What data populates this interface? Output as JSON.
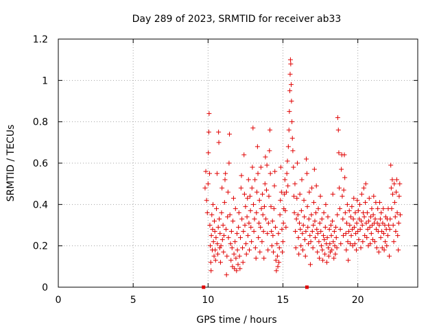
{
  "chart_data": {
    "type": "scatter",
    "title": "Day 289 of 2023, SRMTID for receiver ab33",
    "xlabel": "GPS time / hours",
    "ylabel": "SRMTID / TECUs",
    "xlim": [
      0,
      24
    ],
    "ylim": [
      0,
      1.2
    ],
    "x_ticks": [
      0,
      5,
      10,
      15,
      20
    ],
    "x_tick_labels": [
      "0",
      "5",
      "10",
      "15",
      "20"
    ],
    "y_ticks": [
      0,
      0.2,
      0.4,
      0.6,
      0.8,
      1,
      1.2
    ],
    "y_tick_labels": [
      "0",
      "0.2",
      "0.4",
      "0.6",
      "0.8",
      "1",
      "1.2"
    ],
    "grid": true,
    "marker": "+",
    "series_color": "#e00000",
    "axis_markers": [
      {
        "x": 9.7,
        "y": 0
      },
      {
        "x": 16.6,
        "y": 0
      }
    ],
    "points": [
      [
        9.8,
        0.48
      ],
      [
        9.85,
        0.56
      ],
      [
        9.9,
        0.42
      ],
      [
        9.95,
        0.36
      ],
      [
        10.0,
        0.5
      ],
      [
        10.02,
        0.65
      ],
      [
        10.05,
        0.75
      ],
      [
        10.07,
        0.84
      ],
      [
        10.1,
        0.55
      ],
      [
        10.12,
        0.3
      ],
      [
        10.15,
        0.2
      ],
      [
        10.18,
        0.12
      ],
      [
        10.2,
        0.08
      ],
      [
        10.22,
        0.25
      ],
      [
        10.25,
        0.35
      ],
      [
        10.28,
        0.18
      ],
      [
        10.3,
        0.28
      ],
      [
        10.33,
        0.4
      ],
      [
        10.36,
        0.22
      ],
      [
        10.4,
        0.15
      ],
      [
        10.42,
        0.32
      ],
      [
        10.45,
        0.27
      ],
      [
        10.48,
        0.18
      ],
      [
        10.5,
        0.13
      ],
      [
        10.53,
        0.24
      ],
      [
        10.56,
        0.38
      ],
      [
        10.6,
        0.55
      ],
      [
        10.62,
        0.21
      ],
      [
        10.65,
        0.16
      ],
      [
        10.68,
        0.29
      ],
      [
        10.7,
        0.75
      ],
      [
        10.72,
        0.7
      ],
      [
        10.75,
        0.33
      ],
      [
        10.78,
        0.19
      ],
      [
        10.8,
        0.26
      ],
      [
        10.83,
        0.12
      ],
      [
        10.86,
        0.2
      ],
      [
        10.9,
        0.36
      ],
      [
        10.93,
        0.48
      ],
      [
        10.96,
        0.23
      ],
      [
        11.0,
        0.3
      ],
      [
        11.03,
        0.17
      ],
      [
        11.06,
        0.25
      ],
      [
        11.1,
        0.41
      ],
      [
        11.13,
        0.52
      ],
      [
        11.16,
        0.55
      ],
      [
        11.2,
        0.28
      ],
      [
        11.23,
        0.06
      ],
      [
        11.26,
        0.15
      ],
      [
        11.3,
        0.34
      ],
      [
        11.33,
        0.46
      ],
      [
        11.36,
        0.24
      ],
      [
        11.4,
        0.6
      ],
      [
        11.43,
        0.74
      ],
      [
        11.46,
        0.35
      ],
      [
        11.5,
        0.21
      ],
      [
        11.53,
        0.13
      ],
      [
        11.56,
        0.27
      ],
      [
        11.6,
        0.19
      ],
      [
        11.63,
        0.1
      ],
      [
        11.66,
        0.32
      ],
      [
        11.7,
        0.43
      ],
      [
        11.73,
        0.16
      ],
      [
        11.76,
        0.09
      ],
      [
        11.8,
        0.22
      ],
      [
        11.83,
        0.38
      ],
      [
        11.86,
        0.14
      ],
      [
        11.9,
        0.08
      ],
      [
        11.93,
        0.26
      ],
      [
        11.96,
        0.18
      ],
      [
        12.0,
        0.11
      ],
      [
        12.03,
        0.29
      ],
      [
        12.06,
        0.36
      ],
      [
        12.1,
        0.15
      ],
      [
        12.13,
        0.09
      ],
      [
        12.16,
        0.24
      ],
      [
        12.2,
        0.48
      ],
      [
        12.23,
        0.54
      ],
      [
        12.26,
        0.33
      ],
      [
        12.3,
        0.19
      ],
      [
        12.33,
        0.12
      ],
      [
        12.36,
        0.27
      ],
      [
        12.4,
        0.64
      ],
      [
        12.43,
        0.45
      ],
      [
        12.46,
        0.3
      ],
      [
        12.5,
        0.39
      ],
      [
        12.53,
        0.21
      ],
      [
        12.56,
        0.16
      ],
      [
        12.6,
        0.34
      ],
      [
        12.63,
        0.43
      ],
      [
        12.66,
        0.25
      ],
      [
        12.7,
        0.52
      ],
      [
        12.73,
        0.31
      ],
      [
        12.76,
        0.18
      ],
      [
        12.8,
        0.44
      ],
      [
        12.83,
        0.37
      ],
      [
        12.86,
        0.29
      ],
      [
        12.9,
        0.22
      ],
      [
        12.93,
        0.48
      ],
      [
        12.96,
        0.58
      ],
      [
        13.0,
        0.77
      ],
      [
        13.03,
        0.4
      ],
      [
        13.06,
        0.27
      ],
      [
        13.1,
        0.33
      ],
      [
        13.13,
        0.52
      ],
      [
        13.16,
        0.19
      ],
      [
        13.2,
        0.14
      ],
      [
        13.23,
        0.36
      ],
      [
        13.26,
        0.46
      ],
      [
        13.3,
        0.68
      ],
      [
        13.33,
        0.55
      ],
      [
        13.36,
        0.24
      ],
      [
        13.4,
        0.31
      ],
      [
        13.43,
        0.42
      ],
      [
        13.46,
        0.17
      ],
      [
        13.5,
        0.29
      ],
      [
        13.53,
        0.58
      ],
      [
        13.56,
        0.38
      ],
      [
        13.6,
        0.22
      ],
      [
        13.63,
        0.45
      ],
      [
        13.66,
        0.35
      ],
      [
        13.7,
        0.27
      ],
      [
        13.73,
        0.14
      ],
      [
        13.76,
        0.39
      ],
      [
        13.8,
        0.5
      ],
      [
        13.83,
        0.63
      ],
      [
        13.86,
        0.33
      ],
      [
        13.9,
        0.47
      ],
      [
        13.93,
        0.59
      ],
      [
        13.96,
        0.26
      ],
      [
        14.0,
        0.18
      ],
      [
        14.03,
        0.31
      ],
      [
        14.06,
        0.44
      ],
      [
        14.1,
        0.66
      ],
      [
        14.13,
        0.76
      ],
      [
        14.16,
        0.55
      ],
      [
        14.2,
        0.39
      ],
      [
        14.23,
        0.27
      ],
      [
        14.26,
        0.2
      ],
      [
        14.3,
        0.32
      ],
      [
        14.33,
        0.25
      ],
      [
        14.36,
        0.17
      ],
      [
        14.4,
        0.38
      ],
      [
        14.43,
        0.49
      ],
      [
        14.46,
        0.56
      ],
      [
        14.5,
        0.29
      ],
      [
        14.53,
        0.13
      ],
      [
        14.56,
        0.08
      ],
      [
        14.6,
        0.21
      ],
      [
        14.63,
        0.15
      ],
      [
        14.66,
        0.1
      ],
      [
        14.7,
        0.26
      ],
      [
        14.73,
        0.12
      ],
      [
        14.76,
        0.19
      ],
      [
        14.8,
        0.35
      ],
      [
        14.83,
        0.42
      ],
      [
        14.86,
        0.58
      ],
      [
        14.9,
        0.46
      ],
      [
        14.93,
        0.28
      ],
      [
        14.96,
        0.17
      ],
      [
        15.0,
        0.22
      ],
      [
        15.03,
        0.31
      ],
      [
        15.06,
        0.38
      ],
      [
        15.1,
        0.45
      ],
      [
        15.13,
        0.52
      ],
      [
        15.16,
        0.37
      ],
      [
        15.2,
        0.29
      ],
      [
        15.23,
        0.46
      ],
      [
        15.26,
        0.55
      ],
      [
        15.3,
        0.61
      ],
      [
        15.33,
        0.49
      ],
      [
        15.36,
        0.68
      ],
      [
        15.4,
        0.76
      ],
      [
        15.43,
        0.85
      ],
      [
        15.46,
        0.95
      ],
      [
        15.48,
        1.03
      ],
      [
        15.5,
        1.1
      ],
      [
        15.52,
        1.08
      ],
      [
        15.55,
        0.98
      ],
      [
        15.57,
        0.9
      ],
      [
        15.6,
        0.8
      ],
      [
        15.63,
        0.72
      ],
      [
        15.66,
        0.66
      ],
      [
        15.7,
        0.58
      ],
      [
        15.73,
        0.44
      ],
      [
        15.76,
        0.36
      ],
      [
        15.8,
        0.5
      ],
      [
        15.83,
        0.27
      ],
      [
        15.86,
        0.19
      ],
      [
        15.9,
        0.33
      ],
      [
        15.93,
        0.43
      ],
      [
        15.96,
        0.6
      ],
      [
        16.0,
        0.35
      ],
      [
        16.03,
        0.24
      ],
      [
        16.06,
        0.16
      ],
      [
        16.1,
        0.31
      ],
      [
        16.13,
        0.45
      ],
      [
        16.16,
        0.28
      ],
      [
        16.2,
        0.2
      ],
      [
        16.23,
        0.37
      ],
      [
        16.26,
        0.52
      ],
      [
        16.3,
        0.26
      ],
      [
        16.33,
        0.18
      ],
      [
        16.36,
        0.3
      ],
      [
        16.4,
        0.42
      ],
      [
        16.43,
        0.34
      ],
      [
        16.46,
        0.23
      ],
      [
        16.5,
        0.15
      ],
      [
        16.53,
        0.27
      ],
      [
        16.56,
        0.62
      ],
      [
        16.6,
        0.55
      ],
      [
        16.63,
        0.39
      ],
      [
        16.66,
        0.29
      ],
      [
        16.7,
        0.21
      ],
      [
        16.73,
        0.33
      ],
      [
        16.76,
        0.46
      ],
      [
        16.8,
        0.25
      ],
      [
        16.83,
        0.11
      ],
      [
        16.86,
        0.22
      ],
      [
        16.9,
        0.35
      ],
      [
        16.93,
        0.48
      ],
      [
        16.96,
        0.27
      ],
      [
        17.0,
        0.19
      ],
      [
        17.03,
        0.3
      ],
      [
        17.06,
        0.41
      ],
      [
        17.1,
        0.57
      ],
      [
        17.13,
        0.32
      ],
      [
        17.16,
        0.24
      ],
      [
        17.2,
        0.36
      ],
      [
        17.23,
        0.49
      ],
      [
        17.26,
        0.28
      ],
      [
        17.3,
        0.17
      ],
      [
        17.33,
        0.26
      ],
      [
        17.36,
        0.38
      ],
      [
        17.4,
        0.22
      ],
      [
        17.43,
        0.14
      ],
      [
        17.46,
        0.31
      ],
      [
        17.5,
        0.44
      ],
      [
        17.53,
        0.27
      ],
      [
        17.56,
        0.2
      ],
      [
        17.6,
        0.33
      ],
      [
        17.63,
        0.18
      ],
      [
        17.66,
        0.13
      ],
      [
        17.7,
        0.25
      ],
      [
        17.73,
        0.36
      ],
      [
        17.76,
        0.23
      ],
      [
        17.8,
        0.16
      ],
      [
        17.83,
        0.29
      ],
      [
        17.86,
        0.4
      ],
      [
        17.9,
        0.21
      ],
      [
        17.93,
        0.12
      ],
      [
        17.96,
        0.24
      ],
      [
        18.0,
        0.34
      ],
      [
        18.03,
        0.19
      ],
      [
        18.06,
        0.15
      ],
      [
        18.1,
        0.28
      ],
      [
        18.13,
        0.21
      ],
      [
        18.16,
        0.17
      ],
      [
        18.2,
        0.3
      ],
      [
        18.23,
        0.25
      ],
      [
        18.26,
        0.18
      ],
      [
        18.3,
        0.32
      ],
      [
        18.33,
        0.45
      ],
      [
        18.36,
        0.22
      ],
      [
        18.4,
        0.14
      ],
      [
        18.43,
        0.27
      ],
      [
        18.46,
        0.2
      ],
      [
        18.5,
        0.16
      ],
      [
        18.53,
        0.29
      ],
      [
        18.56,
        0.24
      ],
      [
        18.6,
        0.19
      ],
      [
        18.63,
        0.35
      ],
      [
        18.66,
        0.82
      ],
      [
        18.7,
        0.76
      ],
      [
        18.73,
        0.65
      ],
      [
        18.76,
        0.48
      ],
      [
        18.8,
        0.38
      ],
      [
        18.83,
        0.28
      ],
      [
        18.86,
        0.21
      ],
      [
        18.9,
        0.57
      ],
      [
        18.93,
        0.64
      ],
      [
        18.96,
        0.44
      ],
      [
        19.0,
        0.33
      ],
      [
        19.03,
        0.25
      ],
      [
        19.06,
        0.47
      ],
      [
        19.1,
        0.64
      ],
      [
        19.13,
        0.53
      ],
      [
        19.16,
        0.36
      ],
      [
        19.2,
        0.26
      ],
      [
        19.23,
        0.18
      ],
      [
        19.26,
        0.31
      ],
      [
        19.3,
        0.4
      ],
      [
        19.33,
        0.22
      ],
      [
        19.36,
        0.13
      ],
      [
        19.4,
        0.27
      ],
      [
        19.43,
        0.37
      ],
      [
        19.46,
        0.3
      ],
      [
        19.5,
        0.21
      ],
      [
        19.53,
        0.34
      ],
      [
        19.56,
        0.25
      ],
      [
        19.6,
        0.39
      ],
      [
        19.63,
        0.28
      ],
      [
        19.66,
        0.2
      ],
      [
        19.7,
        0.33
      ],
      [
        19.73,
        0.43
      ],
      [
        19.76,
        0.29
      ],
      [
        19.8,
        0.21
      ],
      [
        19.83,
        0.36
      ],
      [
        19.86,
        0.26
      ],
      [
        19.9,
        0.18
      ],
      [
        19.93,
        0.31
      ],
      [
        19.96,
        0.42
      ],
      [
        20.0,
        0.27
      ],
      [
        20.03,
        0.37
      ],
      [
        20.06,
        0.23
      ],
      [
        20.1,
        0.33
      ],
      [
        20.13,
        0.4
      ],
      [
        20.16,
        0.28
      ],
      [
        20.2,
        0.19
      ],
      [
        20.23,
        0.32
      ],
      [
        20.26,
        0.45
      ],
      [
        20.3,
        0.3
      ],
      [
        20.33,
        0.22
      ],
      [
        20.36,
        0.36
      ],
      [
        20.4,
        0.48
      ],
      [
        20.43,
        0.34
      ],
      [
        20.46,
        0.25
      ],
      [
        20.5,
        0.41
      ],
      [
        20.53,
        0.5
      ],
      [
        20.56,
        0.31
      ],
      [
        20.6,
        0.24
      ],
      [
        20.63,
        0.36
      ],
      [
        20.66,
        0.28
      ],
      [
        20.7,
        0.2
      ],
      [
        20.73,
        0.32
      ],
      [
        20.76,
        0.43
      ],
      [
        20.8,
        0.29
      ],
      [
        20.83,
        0.21
      ],
      [
        20.86,
        0.34
      ],
      [
        20.9,
        0.26
      ],
      [
        20.93,
        0.38
      ],
      [
        20.96,
        0.3
      ],
      [
        21.0,
        0.23
      ],
      [
        21.03,
        0.35
      ],
      [
        21.06,
        0.44
      ],
      [
        21.1,
        0.31
      ],
      [
        21.13,
        0.22
      ],
      [
        21.16,
        0.33
      ],
      [
        21.2,
        0.41
      ],
      [
        21.23,
        0.28
      ],
      [
        21.26,
        0.19
      ],
      [
        21.3,
        0.31
      ],
      [
        21.33,
        0.38
      ],
      [
        21.36,
        0.27
      ],
      [
        21.4,
        0.17
      ],
      [
        21.43,
        0.3
      ],
      [
        21.46,
        0.41
      ],
      [
        21.5,
        0.33
      ],
      [
        21.53,
        0.24
      ],
      [
        21.56,
        0.36
      ],
      [
        21.6,
        0.27
      ],
      [
        21.63,
        0.19
      ],
      [
        21.66,
        0.31
      ],
      [
        21.7,
        0.38
      ],
      [
        21.73,
        0.26
      ],
      [
        21.76,
        0.18
      ],
      [
        21.8,
        0.3
      ],
      [
        21.83,
        0.22
      ],
      [
        21.86,
        0.34
      ],
      [
        21.9,
        0.28
      ],
      [
        21.93,
        0.2
      ],
      [
        21.96,
        0.33
      ],
      [
        22.0,
        0.25
      ],
      [
        22.03,
        0.38
      ],
      [
        22.06,
        0.3
      ],
      [
        22.1,
        0.15
      ],
      [
        22.13,
        0.28
      ],
      [
        22.16,
        0.33
      ],
      [
        22.2,
        0.59
      ],
      [
        22.23,
        0.48
      ],
      [
        22.26,
        0.38
      ],
      [
        22.3,
        0.52
      ],
      [
        22.33,
        0.45
      ],
      [
        22.36,
        0.3
      ],
      [
        22.4,
        0.22
      ],
      [
        22.43,
        0.5
      ],
      [
        22.46,
        0.41
      ],
      [
        22.5,
        0.34
      ],
      [
        22.53,
        0.27
      ],
      [
        22.56,
        0.46
      ],
      [
        22.6,
        0.52
      ],
      [
        22.63,
        0.36
      ],
      [
        22.66,
        0.25
      ],
      [
        22.7,
        0.18
      ],
      [
        22.73,
        0.31
      ],
      [
        22.76,
        0.44
      ],
      [
        22.8,
        0.5
      ],
      [
        22.83,
        0.35
      ]
    ]
  }
}
